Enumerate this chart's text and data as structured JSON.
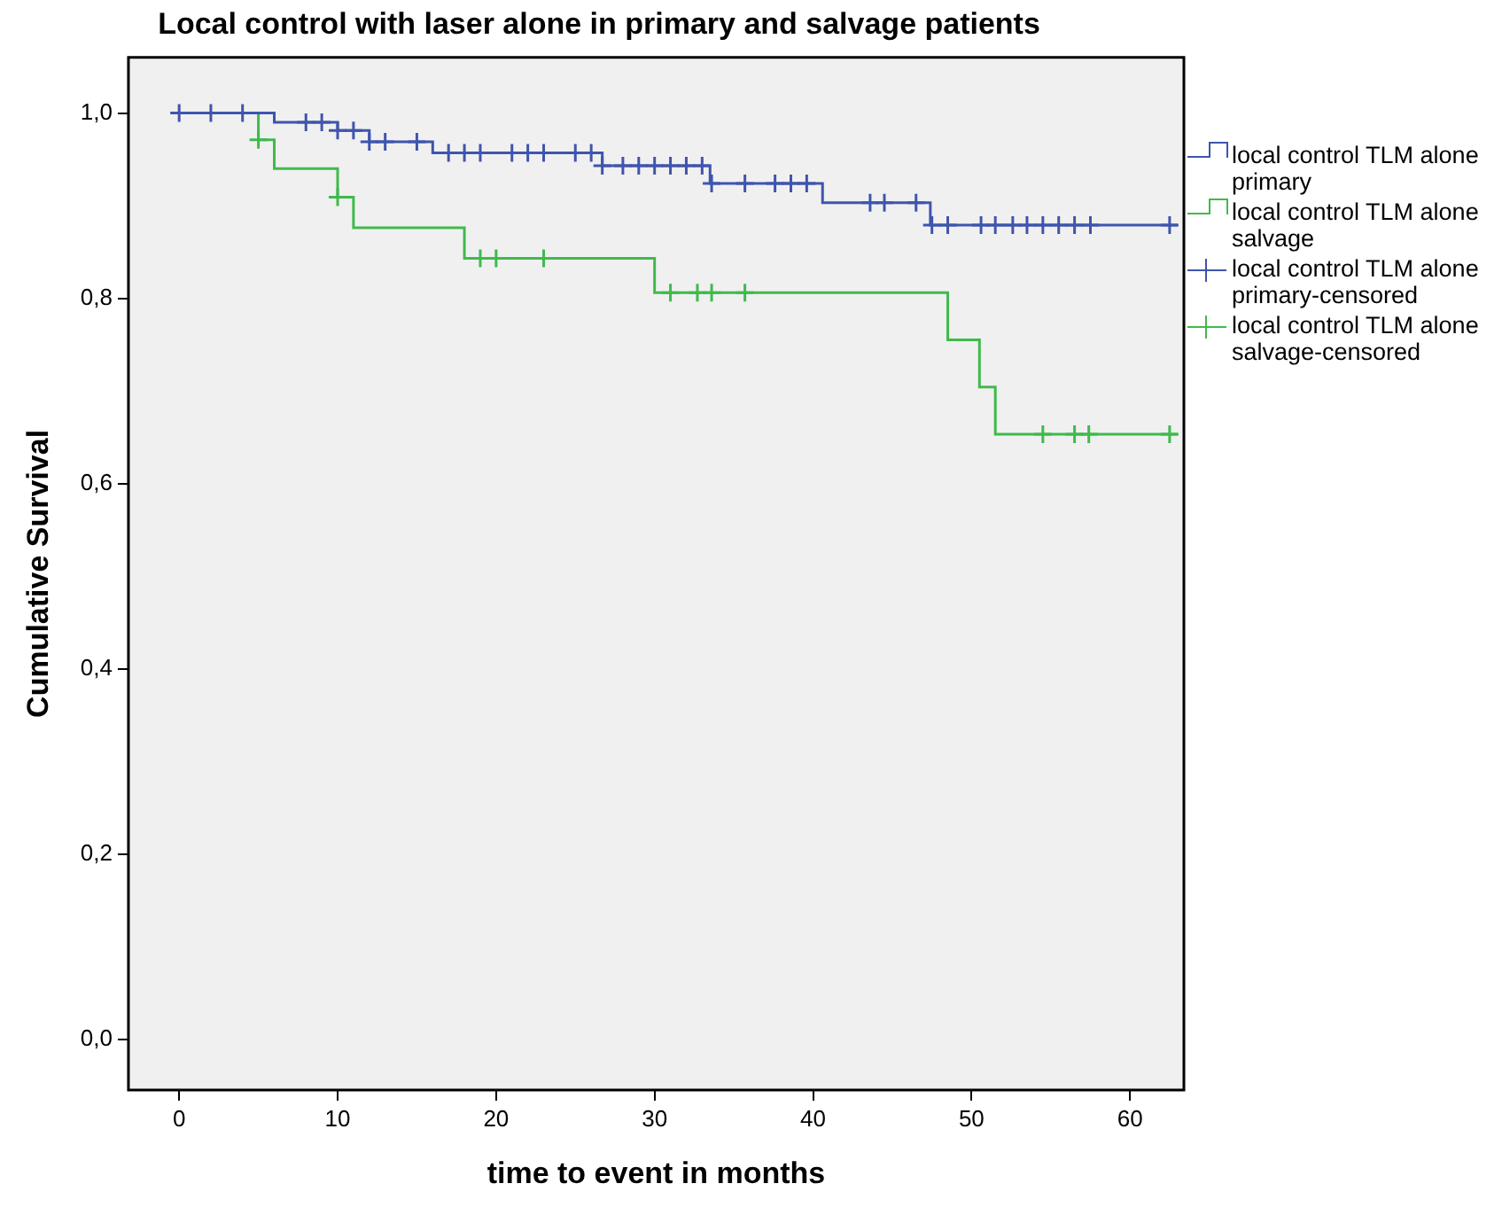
{
  "chart_data": {
    "type": "step",
    "title": "Local control with laser alone in primary and salvage patients",
    "xlabel": "time to event in months",
    "ylabel": "Cumulative Survival",
    "xlim": [
      -3.2,
      63.4
    ],
    "xticks": [
      0,
      10,
      20,
      30,
      40,
      50,
      60
    ],
    "ylim": [
      -0.055,
      1.06
    ],
    "yticks": [
      {
        "value": 0,
        "label": "0,0"
      },
      {
        "value": 0.2,
        "label": "0,2"
      },
      {
        "value": 0.4,
        "label": "0,4"
      },
      {
        "value": 0.6,
        "label": "0,6"
      },
      {
        "value": 0.8,
        "label": "0,8"
      },
      {
        "value": 1,
        "label": "1,0"
      }
    ],
    "grid": false,
    "legend": "right",
    "series": [
      {
        "name": "local control TLM alone primary",
        "color": "#3f55ad",
        "x": [
          0,
          6,
          10,
          12,
          16,
          26.7,
          33.5,
          40.6,
          47.4,
          63
        ],
        "values": [
          1,
          0.99,
          0.981,
          0.969,
          0.957,
          0.943,
          0.924,
          0.903,
          0.879,
          0.879
        ]
      },
      {
        "name": "local control TLM alone salvage",
        "color": "#3fba4c",
        "x": [
          0,
          5,
          6,
          10,
          11,
          18,
          30,
          48.5,
          50.5,
          51.5,
          63
        ],
        "values": [
          1,
          0.971,
          0.94,
          0.909,
          0.876,
          0.843,
          0.806,
          0.755,
          0.704,
          0.653,
          0.653
        ]
      },
      {
        "name": "local control TLM alone primary-censored",
        "type": "scatter",
        "marker": "cross",
        "color": "#3f55ad",
        "x": [
          0,
          2,
          4,
          8,
          9,
          10,
          11,
          12,
          13,
          15,
          17,
          18,
          19,
          21,
          22,
          23,
          25,
          26,
          26.7,
          28,
          29,
          30,
          31,
          32,
          33,
          33.6,
          35.7,
          37.6,
          38.6,
          39.6,
          43.6,
          44.5,
          46.5,
          47.5,
          48.5,
          50.6,
          51.5,
          52.6,
          53.5,
          54.5,
          55.5,
          56.5,
          57.5,
          62.5
        ],
        "values": [
          1,
          1,
          1,
          0.99,
          0.99,
          0.981,
          0.981,
          0.969,
          0.969,
          0.969,
          0.957,
          0.957,
          0.957,
          0.957,
          0.957,
          0.957,
          0.957,
          0.957,
          0.943,
          0.943,
          0.943,
          0.943,
          0.943,
          0.943,
          0.943,
          0.924,
          0.924,
          0.924,
          0.924,
          0.924,
          0.903,
          0.903,
          0.903,
          0.879,
          0.879,
          0.879,
          0.879,
          0.879,
          0.879,
          0.879,
          0.879,
          0.879,
          0.879,
          0.879
        ]
      },
      {
        "name": "local control TLM alone salvage-censored",
        "type": "scatter",
        "marker": "cross",
        "color": "#3fba4c",
        "x": [
          5,
          10,
          19,
          20,
          23,
          31,
          32.7,
          33.6,
          35.7,
          54.5,
          56.5,
          57.4,
          62.5
        ],
        "values": [
          0.971,
          0.909,
          0.843,
          0.843,
          0.843,
          0.806,
          0.806,
          0.806,
          0.806,
          0.653,
          0.653,
          0.653,
          0.653
        ]
      }
    ]
  }
}
